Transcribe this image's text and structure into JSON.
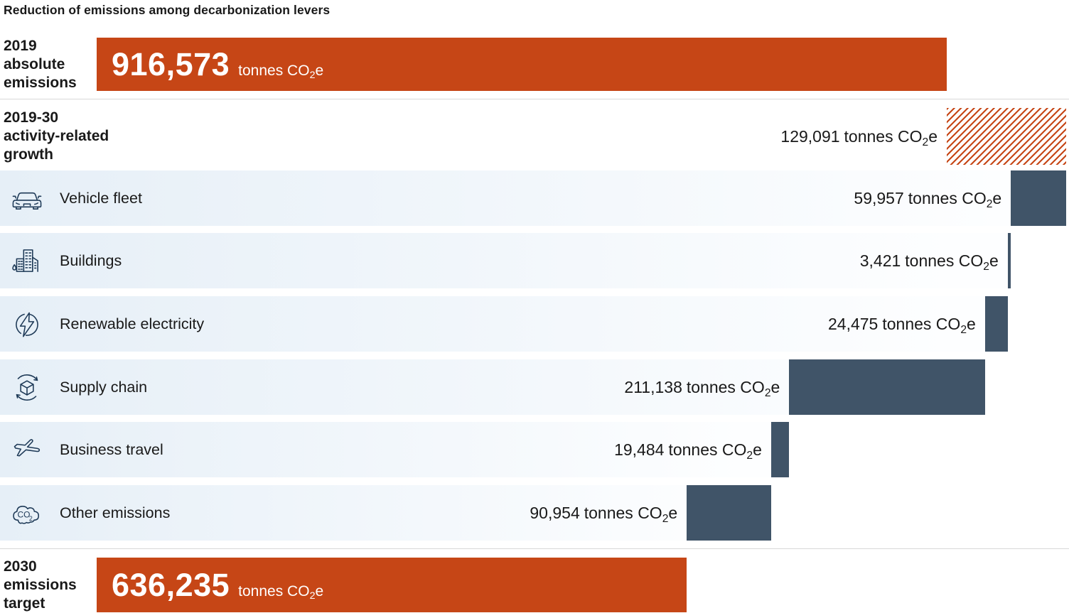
{
  "title": "Reduction of emissions among decarbonization levers",
  "unit": {
    "prefix": "tonnes CO",
    "sub": "2",
    "suffix": "e"
  },
  "colors": {
    "accent_orange": "#c64616",
    "bar_blue": "#405468",
    "band_blue": "#e6eff7",
    "icon_navy": "#1e3a57",
    "text": "#191919",
    "divider": "#d8d8d8"
  },
  "chart_data": {
    "type": "waterfall",
    "title": "Reduction of emissions among decarbonization levers",
    "unit": "tonnes CO2e",
    "start": {
      "label": "2019 absolute emissions",
      "value": 916573,
      "display": "916,573",
      "style": "solid-orange"
    },
    "increase": {
      "label": "2019-30 activity-related growth",
      "value": 129091,
      "display": "129,091",
      "style": "hatched-orange"
    },
    "levers": [
      {
        "label": "Vehicle fleet",
        "value": 59957,
        "display": "59,957",
        "icon": "car-icon"
      },
      {
        "label": "Buildings",
        "value": 3421,
        "display": "3,421",
        "icon": "buildings-icon"
      },
      {
        "label": "Renewable electricity",
        "value": 24475,
        "display": "24,475",
        "icon": "lightning-circle-icon"
      },
      {
        "label": "Supply chain",
        "value": 211138,
        "display": "211,138",
        "icon": "cube-cycle-icon"
      },
      {
        "label": "Business travel",
        "value": 19484,
        "display": "19,484",
        "icon": "airplane-icon"
      },
      {
        "label": "Other emissions",
        "value": 90954,
        "display": "90,954",
        "icon": "co2-cloud-icon"
      }
    ],
    "end": {
      "label": "2030 emissions target",
      "value": 636235,
      "display": "636,235",
      "style": "solid-orange"
    }
  },
  "rows": {
    "start": {
      "lines": [
        "2019",
        "absolute",
        "emissions"
      ]
    },
    "growth": {
      "lines": [
        "2019-30",
        "activity-related",
        "growth"
      ]
    },
    "end": {
      "lines": [
        "2030",
        "emissions",
        "target"
      ]
    }
  }
}
